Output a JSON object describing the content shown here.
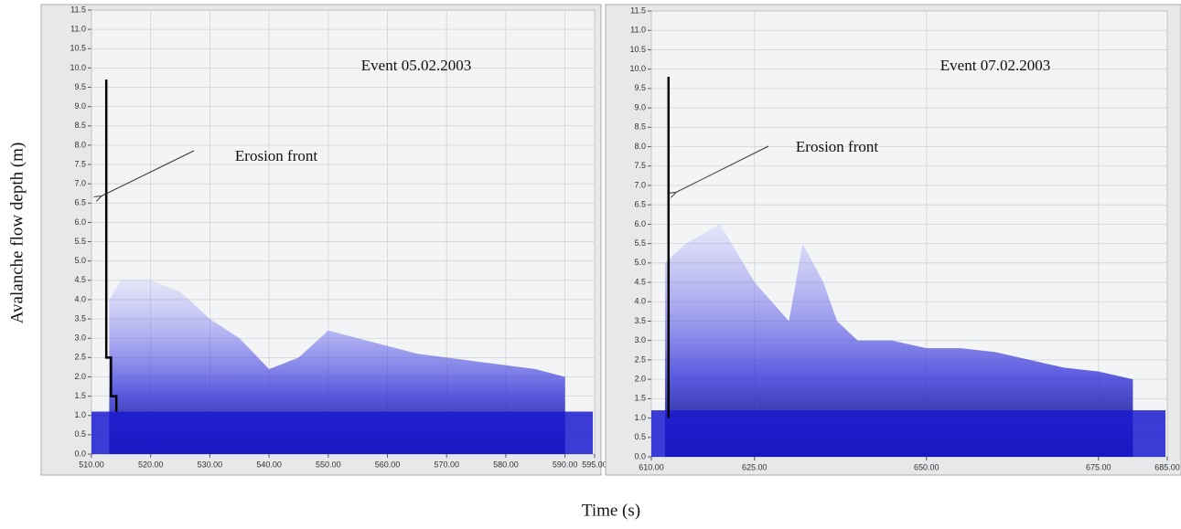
{
  "figure": {
    "xlabel": "Time (s)",
    "ylabel": "Avalanche flow depth (m)"
  },
  "chart_data": [
    {
      "type": "area",
      "annotation": "Event  05.02.2003",
      "arrow_label": "Erosion front",
      "xlim": [
        510,
        595
      ],
      "ylim": [
        0,
        11.5
      ],
      "xticks": [
        {
          "value": 510,
          "label": "510.00"
        },
        {
          "value": 520,
          "label": "520.00"
        },
        {
          "value": 530,
          "label": "530.00"
        },
        {
          "value": 540,
          "label": "540.00"
        },
        {
          "value": 550,
          "label": "550.00"
        },
        {
          "value": 560,
          "label": "560.00"
        },
        {
          "value": 570,
          "label": "570.00"
        },
        {
          "value": 580,
          "label": "580.00"
        },
        {
          "value": 590,
          "label": "590.00"
        },
        {
          "value": 595,
          "label": "595.00"
        }
      ],
      "yticks": [
        {
          "value": 0,
          "label": "0.0"
        },
        0.5,
        {
          "value": 1,
          "label": "1.0"
        },
        1.5,
        {
          "value": 2,
          "label": "2.0"
        },
        2.5,
        {
          "value": 3,
          "label": "3.0"
        },
        3.5,
        {
          "value": 4,
          "label": "4.0"
        },
        4.5,
        {
          "value": 5,
          "label": "5.0"
        },
        5.5,
        {
          "value": 6,
          "label": "6.0"
        },
        6.5,
        {
          "value": 7,
          "label": "7.0"
        },
        7.5,
        {
          "value": 8,
          "label": "8.0"
        },
        8.5,
        {
          "value": 9,
          "label": "9.0"
        },
        9.5,
        {
          "value": 10,
          "label": "10.0"
        },
        10.5,
        {
          "value": 11,
          "label": "11.0"
        },
        11.5
      ],
      "grid": true,
      "color": "#1a1ad0",
      "base_layer": 1.1,
      "x": [
        513,
        515,
        520,
        525,
        530,
        535,
        540,
        545,
        550,
        555,
        560,
        565,
        570,
        575,
        580,
        585,
        590
      ],
      "values": [
        4.0,
        4.5,
        4.5,
        4.2,
        3.5,
        3.0,
        2.2,
        2.5,
        3.2,
        3.0,
        2.8,
        2.6,
        2.5,
        2.4,
        2.3,
        2.2,
        2.0
      ],
      "front": {
        "x": [
          512.5,
          512.5,
          513.3,
          513.3,
          514.2,
          514.2
        ],
        "y": [
          9.7,
          2.5,
          2.5,
          1.5,
          1.5,
          1.1
        ]
      }
    },
    {
      "type": "area",
      "annotation": "Event  07.02.2003",
      "arrow_label": "Erosion front",
      "xlim": [
        610,
        685
      ],
      "ylim": [
        0,
        11.5
      ],
      "xticks": [
        {
          "value": 610,
          "label": "610.00"
        },
        {
          "value": 625,
          "label": "625.00"
        },
        {
          "value": 650,
          "label": "650.00"
        },
        {
          "value": 675,
          "label": "675.00"
        },
        {
          "value": 685,
          "label": "685.00"
        }
      ],
      "yticks": [
        {
          "value": 0,
          "label": "0.0"
        },
        0.5,
        {
          "value": 1,
          "label": "1.0"
        },
        1.5,
        {
          "value": 2,
          "label": "2.0"
        },
        2.5,
        {
          "value": 3,
          "label": "3.0"
        },
        3.5,
        {
          "value": 4,
          "label": "4.0"
        },
        4.5,
        {
          "value": 5,
          "label": "5.0"
        },
        5.5,
        {
          "value": 6,
          "label": "6.0"
        },
        6.5,
        {
          "value": 7,
          "label": "7.0"
        },
        7.5,
        {
          "value": 8,
          "label": "8.0"
        },
        8.5,
        {
          "value": 9,
          "label": "9.0"
        },
        9.5,
        {
          "value": 10,
          "label": "10.0"
        },
        10.5,
        {
          "value": 11,
          "label": "11.0"
        },
        11.5
      ],
      "grid": true,
      "color": "#1a1ad0",
      "base_layer": 1.2,
      "x": [
        612,
        615,
        620,
        625,
        630,
        632,
        635,
        637,
        640,
        645,
        650,
        655,
        660,
        665,
        670,
        675,
        680
      ],
      "values": [
        5.0,
        5.5,
        6.0,
        4.5,
        3.5,
        5.5,
        4.5,
        3.5,
        3.0,
        3.0,
        2.8,
        2.8,
        2.7,
        2.5,
        2.3,
        2.2,
        2.0
      ],
      "front": {
        "x": [
          612.5,
          612.5
        ],
        "y": [
          9.8,
          1.0
        ]
      }
    }
  ]
}
